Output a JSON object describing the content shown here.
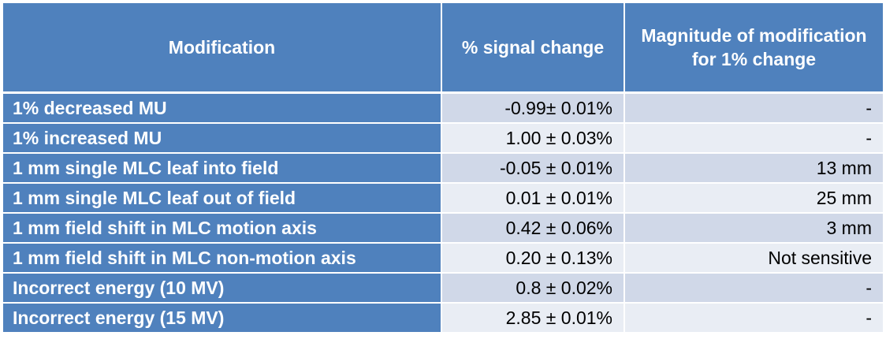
{
  "table": {
    "headers": [
      "Modification",
      "% signal change",
      "Magnitude of modification for 1% change"
    ],
    "rows": [
      {
        "modification": "1% decreased MU",
        "signal_change": "-0.99± 0.01%",
        "magnitude": "-"
      },
      {
        "modification": "1% increased MU",
        "signal_change": "1.00 ± 0.03%",
        "magnitude": "-"
      },
      {
        "modification": "1 mm single MLC leaf into field",
        "signal_change": "-0.05 ± 0.01%",
        "magnitude": "13 mm"
      },
      {
        "modification": "1 mm single MLC leaf out of field",
        "signal_change": "0.01 ± 0.01%",
        "magnitude": "25 mm"
      },
      {
        "modification": "1 mm field shift in MLC motion axis",
        "signal_change": "0.42 ± 0.06%",
        "magnitude": "3 mm"
      },
      {
        "modification": "1 mm field shift in MLC non-motion axis",
        "signal_change": "0.20 ± 0.13%",
        "magnitude": "Not sensitive"
      },
      {
        "modification": "Incorrect energy (10 MV)",
        "signal_change": "0.8 ± 0.02%",
        "magnitude": "-"
      },
      {
        "modification": "Incorrect energy (15 MV)",
        "signal_change": "2.85 ± 0.01%",
        "magnitude": "-"
      }
    ]
  },
  "colors": {
    "header_bg": "#4f81bd",
    "row_odd_bg": "#d0d8e8",
    "row_even_bg": "#e9edf4"
  }
}
